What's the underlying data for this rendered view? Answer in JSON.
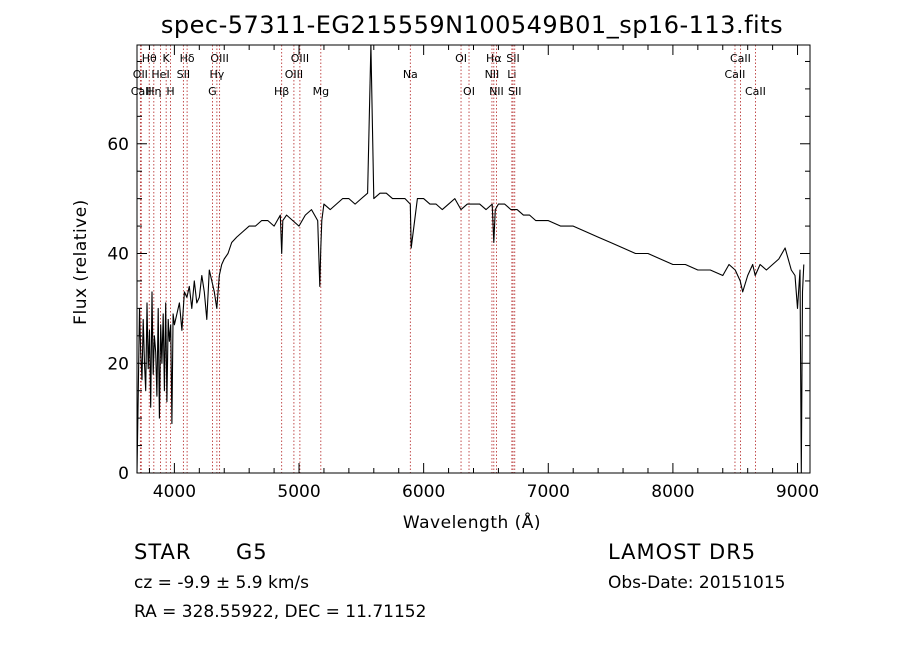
{
  "chart_data": {
    "type": "line",
    "title": "spec-57311-EG215559N100549B01_sp16-113.fits",
    "xlabel": "Wavelength (Å)",
    "ylabel": "Flux (relative)",
    "xlim": [
      3700,
      9100
    ],
    "ylim": [
      0,
      78
    ],
    "x_ticks": [
      4000,
      5000,
      6000,
      7000,
      8000,
      9000
    ],
    "y_ticks": [
      0,
      20,
      40,
      60
    ],
    "grid": false,
    "legend": "none",
    "series": [
      {
        "x": [
          3700,
          3710,
          3720,
          3730,
          3740,
          3750,
          3760,
          3770,
          3780,
          3790,
          3800,
          3810,
          3820,
          3830,
          3840,
          3850,
          3860,
          3870,
          3880,
          3890,
          3900,
          3910,
          3920,
          3930,
          3940,
          3950,
          3960,
          3970,
          3980,
          3990,
          4000,
          4020,
          4040,
          4060,
          4080,
          4100,
          4120,
          4140,
          4160,
          4180,
          4200,
          4220,
          4240,
          4260,
          4280,
          4300,
          4320,
          4340,
          4360,
          4380,
          4400,
          4430,
          4460,
          4500,
          4550,
          4600,
          4650,
          4700,
          4750,
          4800,
          4850,
          4861,
          4870,
          4900,
          4950,
          5000,
          5050,
          5100,
          5150,
          5167,
          5175,
          5183,
          5200,
          5250,
          5300,
          5350,
          5400,
          5450,
          5500,
          5550,
          5577,
          5600,
          5650,
          5700,
          5750,
          5800,
          5850,
          5893,
          5900,
          5950,
          6000,
          6050,
          6100,
          6150,
          6200,
          6250,
          6300,
          6350,
          6400,
          6450,
          6500,
          6550,
          6563,
          6575,
          6600,
          6650,
          6700,
          6750,
          6800,
          6850,
          6900,
          6950,
          7000,
          7100,
          7200,
          7300,
          7400,
          7500,
          7600,
          7700,
          7800,
          7900,
          8000,
          8100,
          8200,
          8300,
          8400,
          8450,
          8500,
          8540,
          8560,
          8600,
          8640,
          8660,
          8700,
          8750,
          8800,
          8850,
          8900,
          8950,
          8980,
          9000,
          9020,
          9030,
          9040,
          9050
        ],
        "y": [
          0,
          14,
          30,
          22,
          17,
          28,
          20,
          15,
          31,
          19,
          26,
          12,
          33,
          18,
          25,
          22,
          14,
          30,
          10,
          27,
          20,
          29,
          15,
          31,
          13,
          28,
          24,
          27,
          9,
          29,
          27,
          29,
          31,
          26,
          33,
          32,
          34,
          30,
          35,
          31,
          32,
          36,
          33,
          28,
          37,
          35,
          33,
          30,
          36,
          38,
          39,
          40,
          42,
          43,
          44,
          45,
          45,
          46,
          46,
          45,
          47,
          40,
          46,
          47,
          46,
          45,
          47,
          48,
          46,
          34,
          41,
          46,
          49,
          48,
          49,
          50,
          50,
          49,
          50,
          51,
          78,
          50,
          51,
          51,
          50,
          50,
          50,
          49,
          41,
          50,
          50,
          49,
          49,
          48,
          49,
          50,
          48,
          49,
          49,
          49,
          48,
          49,
          42,
          48,
          49,
          49,
          48,
          48,
          47,
          47,
          46,
          46,
          46,
          45,
          45,
          44,
          43,
          42,
          41,
          40,
          40,
          39,
          38,
          38,
          37,
          37,
          36,
          38,
          37,
          35,
          33,
          36,
          38,
          36,
          38,
          37,
          38,
          39,
          41,
          37,
          36,
          30,
          37,
          0,
          33,
          38
        ]
      }
    ],
    "line_markers": [
      {
        "label": "Hθ",
        "x": 3798,
        "row": 1
      },
      {
        "label": "OII",
        "x": 3727,
        "row": 2
      },
      {
        "label": "CaII",
        "x": 3734,
        "row": 3
      },
      {
        "label": "K",
        "x": 3934,
        "row": 1
      },
      {
        "label": "HeI",
        "x": 3889,
        "row": 2
      },
      {
        "label": "Hη",
        "x": 3835,
        "row": 3
      },
      {
        "label": "H",
        "x": 3969,
        "row": 3
      },
      {
        "label": "Hδ",
        "x": 4102,
        "row": 1
      },
      {
        "label": "SII",
        "x": 4072,
        "row": 2
      },
      {
        "label": "OIII",
        "x": 4363,
        "row": 1
      },
      {
        "label": "Hγ",
        "x": 4341,
        "row": 2
      },
      {
        "label": "G",
        "x": 4305,
        "row": 3
      },
      {
        "label": "OIII",
        "x": 5007,
        "row": 1
      },
      {
        "label": "OIII",
        "x": 4959,
        "row": 2
      },
      {
        "label": "Hβ",
        "x": 4861,
        "row": 3
      },
      {
        "label": "Mg",
        "x": 5175,
        "row": 3
      },
      {
        "label": "Na",
        "x": 5893,
        "row": 2
      },
      {
        "label": "OI",
        "x": 6300,
        "row": 1
      },
      {
        "label": "OI",
        "x": 6364,
        "row": 3
      },
      {
        "label": "Hα",
        "x": 6563,
        "row": 1
      },
      {
        "label": "NII",
        "x": 6548,
        "row": 2
      },
      {
        "label": "NII",
        "x": 6584,
        "row": 3
      },
      {
        "label": "SII",
        "x": 6717,
        "row": 1
      },
      {
        "label": "Li",
        "x": 6708,
        "row": 2
      },
      {
        "label": "SII",
        "x": 6731,
        "row": 3
      },
      {
        "label": "CaII",
        "x": 8542,
        "row": 1
      },
      {
        "label": "CaII",
        "x": 8498,
        "row": 2
      },
      {
        "label": "CaII",
        "x": 8662,
        "row": 3
      }
    ]
  },
  "info": {
    "object_class": "STAR",
    "subclass": "G5",
    "survey": "LAMOST DR5",
    "cz": "cz = -9.9 ± 5.9 km/s",
    "obs_date": "Obs-Date: 20151015",
    "coords": "RA = 328.55922, DEC =  11.71152"
  },
  "colors": {
    "spectrum": "#000000",
    "line_markers": "#b22222",
    "axes": "#000000"
  }
}
